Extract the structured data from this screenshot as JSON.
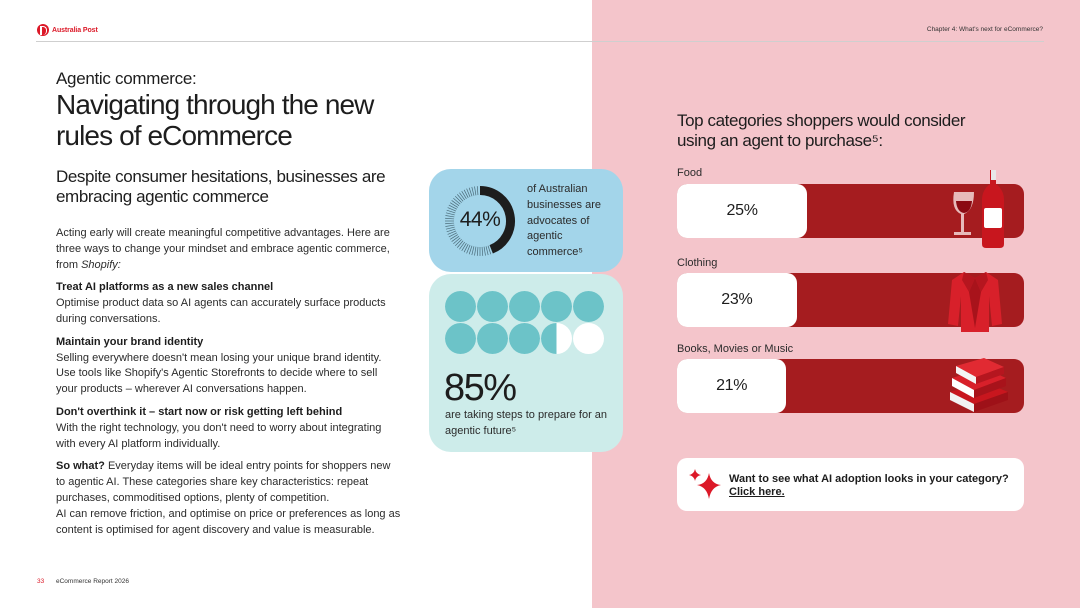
{
  "header": {
    "brand": "Australia Post",
    "chapter": "Chapter 4: What's next for eCommerce?"
  },
  "intro": {
    "kicker": "Agentic commerce:",
    "headline": "Navigating through the new rules of eCommerce",
    "subhead": "Despite consumer hesitations, businesses are embracing agentic commerce",
    "lead_text": "Acting early will create meaningful competitive advantages. Here are three ways to change your mindset and embrace agentic commerce, from ",
    "lead_source": "Shopify:"
  },
  "tips": [
    {
      "title": "Treat AI platforms as a new sales channel",
      "body": "Optimise product data so AI agents can accurately surface products during conversations."
    },
    {
      "title": "Maintain your brand identity",
      "body": "Selling everywhere doesn't mean losing your unique brand identity. Use tools like Shopify's Agentic Storefronts to decide where to sell your products – wherever AI conversations happen."
    },
    {
      "title": "Don't overthink it – start now or risk getting left behind",
      "body": "With the right technology, you don't need to worry about integrating with every AI platform individually."
    }
  ],
  "so_what": {
    "title": "So what?",
    "body": " Everyday items will be ideal entry points for shoppers new to agentic AI. These categories share key characteristics: repeat purchases, commoditised options, plenty of competition.",
    "body2": "AI can remove friction, and optimise on price or preferences as long as content is optimised for agent discovery and value is measurable."
  },
  "stat_advocates": {
    "value": "44%",
    "fraction": 0.44,
    "text": "of Australian businesses are advocates of agentic commerce⁵",
    "accent": "#1d1d1d",
    "card_color": "#a3d5ea"
  },
  "stat_steps": {
    "value": "85%",
    "fraction": 0.85,
    "text": "are taking steps to prepare for an agentic future⁵",
    "dot_color": "#6cc3c8",
    "card_color": "#cdecea"
  },
  "chart_data": {
    "type": "bar",
    "title": "Top categories shoppers would consider using an agent to purchase⁵:",
    "categories": [
      "Food",
      "Clothing",
      "Books, Movies or Music"
    ],
    "values": [
      25,
      23,
      21
    ],
    "value_labels": [
      "25%",
      "23%",
      "21%"
    ],
    "bar_color": "#a51c1f",
    "fill_color": "#ffffff"
  },
  "cta": {
    "question": "Want to see what AI adoption looks in your category?",
    "link": "Click here."
  },
  "footer": {
    "page": "33",
    "title": "eCommerce Report 2026"
  },
  "colors": {
    "brand_red": "#dc1928",
    "panel_pink": "#f4c5cb"
  }
}
